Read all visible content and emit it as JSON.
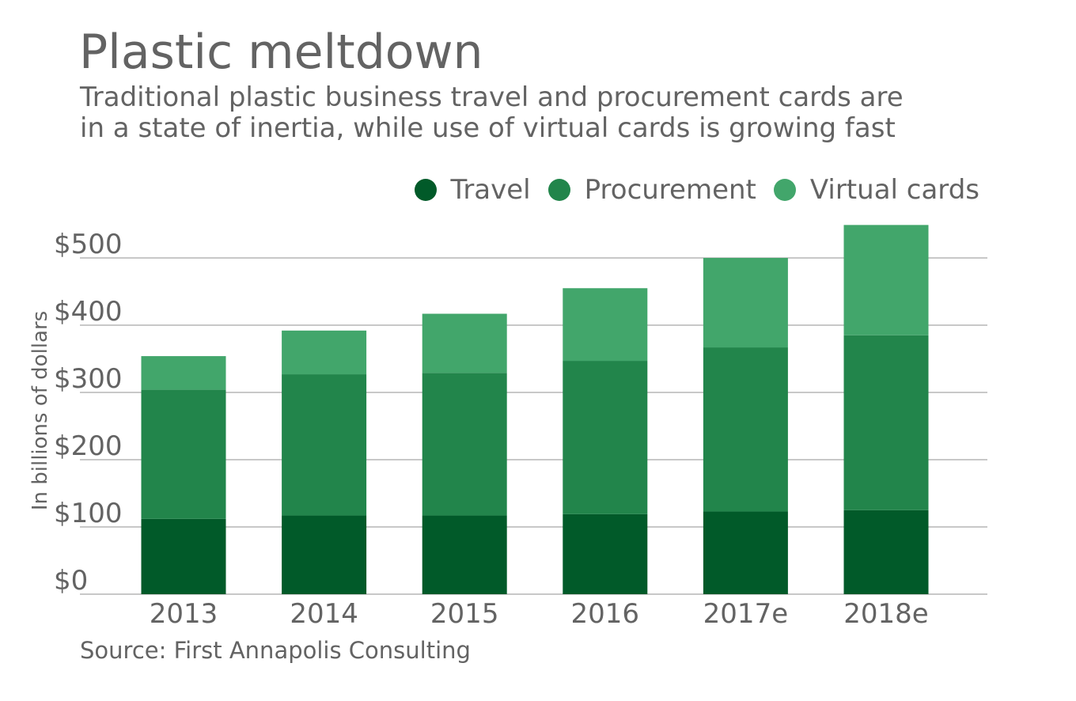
{
  "title": "Plastic meltdown",
  "subtitle_lines": [
    "Traditional plastic business travel and procurement cards are",
    "in a state of inertia, while use of virtual cards is growing fast"
  ],
  "source": "Source: First Annapolis Consulting",
  "colors": {
    "travel": "#015a29",
    "procurement": "#22854b",
    "virtual": "#42a66b",
    "text": "#636363",
    "gridline": "#a6a6a6"
  },
  "legend": [
    {
      "label": "Travel",
      "color": "#015a29"
    },
    {
      "label": "Procurement",
      "color": "#22854b"
    },
    {
      "label": "Virtual cards",
      "color": "#42a66b"
    }
  ],
  "chart_data": {
    "type": "bar",
    "stacked": true,
    "categories": [
      "2013",
      "2014",
      "2015",
      "2016",
      "2017e",
      "2018e"
    ],
    "series": [
      {
        "name": "Travel",
        "values": [
          112,
          117,
          117,
          119,
          123,
          125
        ]
      },
      {
        "name": "Procurement",
        "values": [
          192,
          210,
          212,
          228,
          244,
          260
        ]
      },
      {
        "name": "Virtual cards",
        "values": [
          50,
          65,
          88,
          108,
          133,
          164
        ]
      }
    ],
    "title": "Plastic meltdown",
    "ylabel": "In billions of dollars",
    "xlabel": "",
    "ylim": [
      0,
      500
    ],
    "yticks": [
      0,
      100,
      200,
      300,
      400,
      500
    ],
    "ytick_labels": [
      "$0",
      "$100",
      "$200",
      "$300",
      "$400",
      "$500"
    ],
    "grid": true,
    "legend_position": "top-right"
  }
}
